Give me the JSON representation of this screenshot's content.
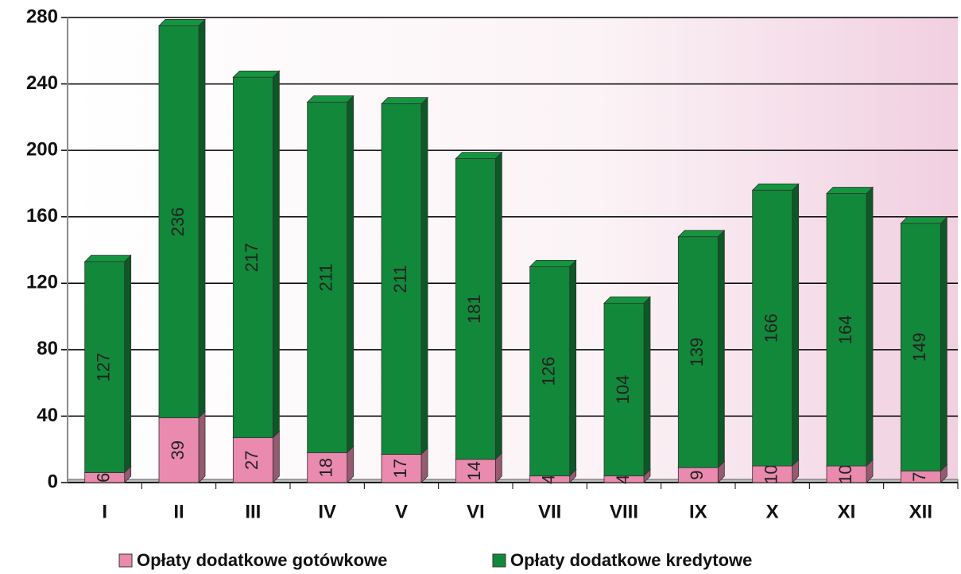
{
  "chart_data": {
    "type": "bar",
    "stacked": true,
    "categories": [
      "I",
      "II",
      "III",
      "IV",
      "V",
      "VI",
      "VII",
      "VIII",
      "IX",
      "X",
      "XI",
      "XII"
    ],
    "series": [
      {
        "name": "Opłaty dodatkowe gotówkowe",
        "color": "#e98aae",
        "values": [
          6,
          39,
          27,
          18,
          17,
          14,
          4,
          4,
          9,
          10,
          10,
          7
        ]
      },
      {
        "name": "Opłaty dodatkowe kredytowe",
        "color": "#12883a",
        "values": [
          127,
          236,
          217,
          211,
          211,
          181,
          126,
          104,
          139,
          166,
          164,
          149
        ]
      }
    ],
    "ylim": [
      0,
      280
    ],
    "yticks": [
      0,
      40,
      80,
      120,
      160,
      200,
      240,
      280
    ],
    "grid": true,
    "legend": "bottom"
  }
}
